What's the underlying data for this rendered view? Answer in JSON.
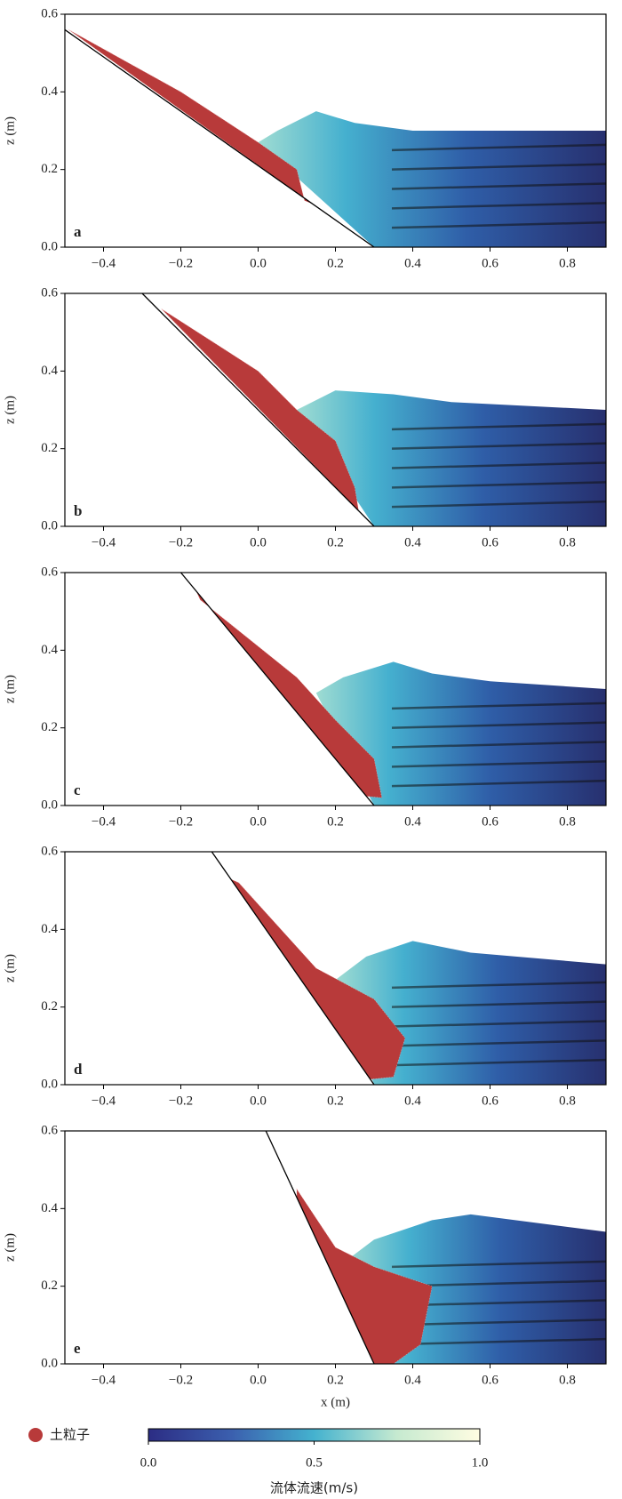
{
  "chart_data": [
    {
      "type": "field",
      "panel_label": "a",
      "ylabel": "z (m)",
      "xlim": [
        -0.5,
        0.9
      ],
      "ylim": [
        0,
        0.6
      ],
      "xticks": [
        {
          "value": -0.4,
          "label": "−0.4"
        },
        {
          "value": -0.2,
          "label": "−0.2"
        },
        {
          "value": 0,
          "label": "0.0"
        },
        0.2,
        0.4,
        0.6,
        0.8
      ],
      "yticks": [
        {
          "value": 0,
          "label": "0.0"
        },
        0.2,
        0.4,
        0.6
      ],
      "slope": {
        "x": [
          -0.5,
          0.3
        ],
        "z": [
          0.56,
          0
        ]
      },
      "fluid_surface": {
        "x": [
          0.0,
          0.05,
          0.15,
          0.25,
          0.4,
          0.9
        ],
        "z": [
          0.27,
          0.3,
          0.35,
          0.32,
          0.3,
          0.3
        ]
      },
      "soil": {
        "x": [
          -0.49,
          -0.2,
          0.0,
          0.1,
          0.12,
          0.14
        ],
        "z": [
          0.56,
          0.4,
          0.27,
          0.2,
          0.12,
          0.112
        ]
      }
    },
    {
      "type": "field",
      "panel_label": "b",
      "ylabel": "z (m)",
      "xlim": [
        -0.5,
        0.9
      ],
      "ylim": [
        0,
        0.6
      ],
      "xticks": [
        {
          "value": -0.4,
          "label": "−0.4"
        },
        {
          "value": -0.2,
          "label": "−0.2"
        },
        {
          "value": 0,
          "label": "0.0"
        },
        0.2,
        0.4,
        0.6,
        0.8
      ],
      "yticks": [
        {
          "value": 0,
          "label": "0.0"
        },
        0.2,
        0.4,
        0.6
      ],
      "slope": {
        "x": [
          -0.3,
          0.3
        ],
        "z": [
          0.6,
          0
        ]
      },
      "fluid_surface": {
        "x": [
          0.1,
          0.2,
          0.35,
          0.5,
          0.9
        ],
        "z": [
          0.3,
          0.35,
          0.34,
          0.32,
          0.3
        ]
      },
      "soil": {
        "x": [
          -0.25,
          0.0,
          0.1,
          0.2,
          0.25,
          0.26
        ],
        "z": [
          0.56,
          0.4,
          0.3,
          0.22,
          0.1,
          0.04
        ]
      }
    },
    {
      "type": "field",
      "panel_label": "c",
      "ylabel": "z (m)",
      "xlim": [
        -0.5,
        0.9
      ],
      "ylim": [
        0,
        0.6
      ],
      "xticks": [
        {
          "value": -0.4,
          "label": "−0.4"
        },
        {
          "value": -0.2,
          "label": "−0.2"
        },
        {
          "value": 0,
          "label": "0.0"
        },
        0.2,
        0.4,
        0.6,
        0.8
      ],
      "yticks": [
        {
          "value": 0,
          "label": "0.0"
        },
        0.2,
        0.4,
        0.6
      ],
      "slope": {
        "x": [
          -0.2,
          0.3
        ],
        "z": [
          0.6,
          0
        ]
      },
      "fluid_surface": {
        "x": [
          0.15,
          0.22,
          0.35,
          0.45,
          0.6,
          0.9
        ],
        "z": [
          0.29,
          0.33,
          0.37,
          0.34,
          0.32,
          0.3
        ]
      },
      "soil": {
        "x": [
          -0.15,
          0.1,
          0.2,
          0.3,
          0.32,
          0.28,
          -0.16
        ],
        "z": [
          0.53,
          0.33,
          0.22,
          0.12,
          0.02,
          0.024,
          0.552
        ]
      }
    },
    {
      "type": "field",
      "panel_label": "d",
      "ylabel": "z (m)",
      "xlim": [
        -0.5,
        0.9
      ],
      "ylim": [
        0,
        0.6
      ],
      "xticks": [
        {
          "value": -0.4,
          "label": "−0.4"
        },
        {
          "value": -0.2,
          "label": "−0.2"
        },
        {
          "value": 0,
          "label": "0.0"
        },
        0.2,
        0.4,
        0.6,
        0.8
      ],
      "yticks": [
        {
          "value": 0,
          "label": "0.0"
        },
        0.2,
        0.4,
        0.6
      ],
      "slope": {
        "x": [
          -0.12,
          0.3
        ],
        "z": [
          0.6,
          0
        ]
      },
      "fluid_surface": {
        "x": [
          0.2,
          0.28,
          0.4,
          0.55,
          0.9
        ],
        "z": [
          0.27,
          0.33,
          0.37,
          0.34,
          0.31
        ]
      },
      "soil": {
        "x": [
          -0.05,
          0.15,
          0.3,
          0.38,
          0.35,
          0.29,
          -0.07
        ],
        "z": [
          0.52,
          0.3,
          0.22,
          0.12,
          0.02,
          0.014,
          0.529
        ]
      }
    },
    {
      "type": "field",
      "panel_label": "e",
      "ylabel": "z (m)",
      "xlabel": "x (m)",
      "xlim": [
        -0.5,
        0.9
      ],
      "ylim": [
        0,
        0.6
      ],
      "xticks": [
        {
          "value": -0.4,
          "label": "−0.4"
        },
        {
          "value": -0.2,
          "label": "−0.2"
        },
        {
          "value": 0,
          "label": "0.0"
        },
        0.2,
        0.4,
        0.6,
        0.8
      ],
      "yticks": [
        {
          "value": 0,
          "label": "0.0"
        },
        0.2,
        0.4,
        0.6
      ],
      "slope": {
        "x": [
          0.02,
          0.3
        ],
        "z": [
          0.6,
          0
        ]
      },
      "fluid_surface": {
        "x": [
          0.22,
          0.3,
          0.45,
          0.55,
          0.9
        ],
        "z": [
          0.26,
          0.32,
          0.37,
          0.385,
          0.34
        ]
      },
      "soil": {
        "x": [
          0.1,
          0.2,
          0.3,
          0.45,
          0.42,
          0.35,
          0.3,
          0.1
        ],
        "z": [
          0.45,
          0.3,
          0.25,
          0.2,
          0.05,
          0.0,
          0.0,
          0.429
        ]
      }
    }
  ],
  "legend": {
    "particle_label": "土粒子",
    "particle_color": "#b83a3a",
    "colorbar": {
      "label": "流体流速(m/s)",
      "lim": [
        0,
        1
      ],
      "ticks": [
        {
          "value": 0,
          "label": "0.0"
        },
        0.5,
        {
          "value": 1,
          "label": "1.0"
        }
      ]
    }
  }
}
